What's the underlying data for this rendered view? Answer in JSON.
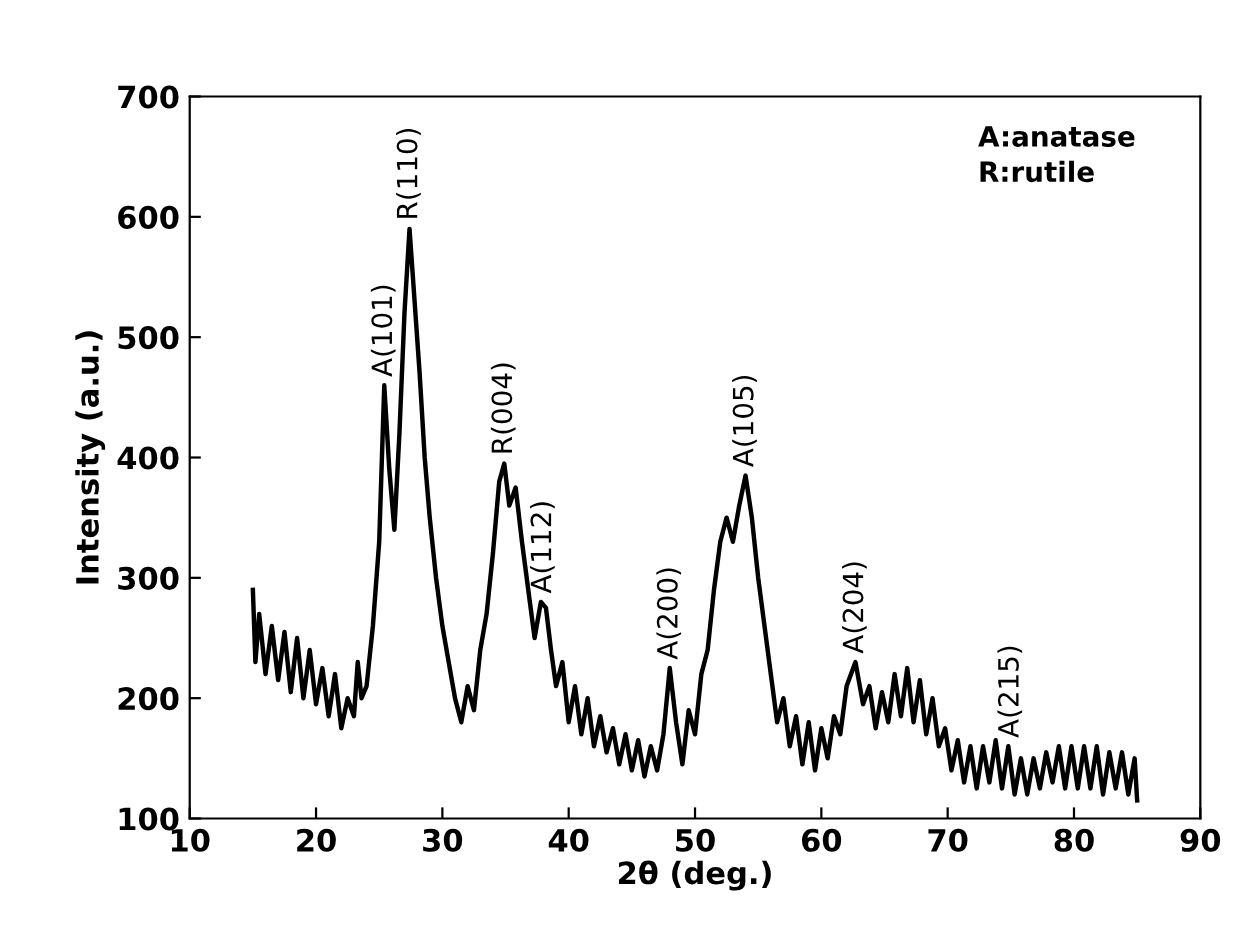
{
  "chart_data": {
    "type": "line",
    "xlabel": "2θ (deg.)",
    "ylabel": "Intensity (a.u.)",
    "xlim": [
      10,
      90
    ],
    "xticks": [
      10,
      20,
      30,
      40,
      50,
      60,
      70,
      80,
      90
    ],
    "ylim": [
      100,
      700
    ],
    "yticks": [
      100,
      200,
      300,
      400,
      500,
      600,
      700
    ],
    "grid": false,
    "marker": "none",
    "line_style": "solid",
    "series": [
      {
        "color": "#000000",
        "x": [
          15,
          15.2,
          15.5,
          16,
          16.5,
          17,
          17.5,
          18,
          18.5,
          19,
          19.5,
          20,
          20.5,
          21,
          21.5,
          22,
          22.5,
          23,
          23.3,
          23.6,
          24,
          24.5,
          25,
          25.4,
          25.8,
          26.2,
          26.6,
          27,
          27.4,
          27.8,
          28.2,
          28.6,
          29,
          29.5,
          30,
          30.5,
          31,
          31.5,
          32,
          32.5,
          33,
          33.5,
          34,
          34.5,
          34.9,
          35.3,
          35.8,
          36.3,
          36.8,
          37.3,
          37.8,
          38.2,
          38.6,
          39,
          39.5,
          40,
          40.5,
          41,
          41.5,
          42,
          42.5,
          43,
          43.5,
          44,
          44.5,
          45,
          45.5,
          46,
          46.5,
          47,
          47.5,
          48,
          48.5,
          49,
          49.5,
          50,
          50.5,
          51,
          51.5,
          52,
          52.5,
          53,
          53.5,
          54,
          54.5,
          55,
          55.5,
          56,
          56.5,
          57,
          57.5,
          58,
          58.5,
          59,
          59.5,
          60,
          60.5,
          61,
          61.5,
          62,
          62.7,
          63.3,
          63.8,
          64.3,
          64.8,
          65.3,
          65.8,
          66.3,
          66.8,
          67.3,
          67.8,
          68.3,
          68.8,
          69.3,
          69.8,
          70.3,
          70.8,
          71.3,
          71.8,
          72.3,
          72.8,
          73.3,
          73.8,
          74.3,
          74.8,
          75.3,
          75.8,
          76.3,
          76.8,
          77.3,
          77.8,
          78.3,
          78.8,
          79.3,
          79.8,
          80.3,
          80.8,
          81.3,
          81.8,
          82.3,
          82.8,
          83.3,
          83.8,
          84.3,
          84.8,
          85
        ],
        "values": [
          290,
          230,
          270,
          220,
          260,
          215,
          255,
          205,
          250,
          200,
          240,
          195,
          225,
          185,
          220,
          175,
          200,
          185,
          230,
          200,
          210,
          260,
          330,
          460,
          390,
          340,
          420,
          520,
          590,
          530,
          470,
          400,
          350,
          300,
          260,
          230,
          200,
          180,
          210,
          190,
          240,
          270,
          320,
          380,
          395,
          360,
          375,
          330,
          290,
          250,
          280,
          275,
          240,
          210,
          230,
          180,
          210,
          170,
          200,
          160,
          185,
          155,
          175,
          145,
          170,
          140,
          165,
          135,
          160,
          140,
          170,
          225,
          180,
          145,
          190,
          170,
          220,
          240,
          290,
          330,
          350,
          330,
          360,
          385,
          350,
          300,
          260,
          220,
          180,
          200,
          160,
          185,
          145,
          180,
          140,
          175,
          150,
          185,
          170,
          210,
          230,
          195,
          210,
          175,
          205,
          180,
          220,
          185,
          225,
          180,
          215,
          170,
          200,
          160,
          175,
          140,
          165,
          130,
          160,
          125,
          160,
          130,
          165,
          125,
          160,
          120,
          150,
          120,
          150,
          125,
          155,
          130,
          160,
          125,
          160,
          125,
          160,
          125,
          160,
          120,
          155,
          125,
          155,
          120,
          150,
          115
        ]
      }
    ],
    "annotations": [
      {
        "text": "A(101)",
        "x": 25.4,
        "y": 460
      },
      {
        "text": "R(110)",
        "x": 27.4,
        "y": 590
      },
      {
        "text": "R(004)",
        "x": 34.9,
        "y": 395
      },
      {
        "text": "A(112)",
        "x": 38,
        "y": 280
      },
      {
        "text": "A(200)",
        "x": 48,
        "y": 225
      },
      {
        "text": "A(105)",
        "x": 54,
        "y": 385
      },
      {
        "text": "A(204)",
        "x": 62.7,
        "y": 230
      },
      {
        "text": "A(215)",
        "x": 75,
        "y": 160
      },
      "A:anatase\nR:rutile"
    ]
  }
}
